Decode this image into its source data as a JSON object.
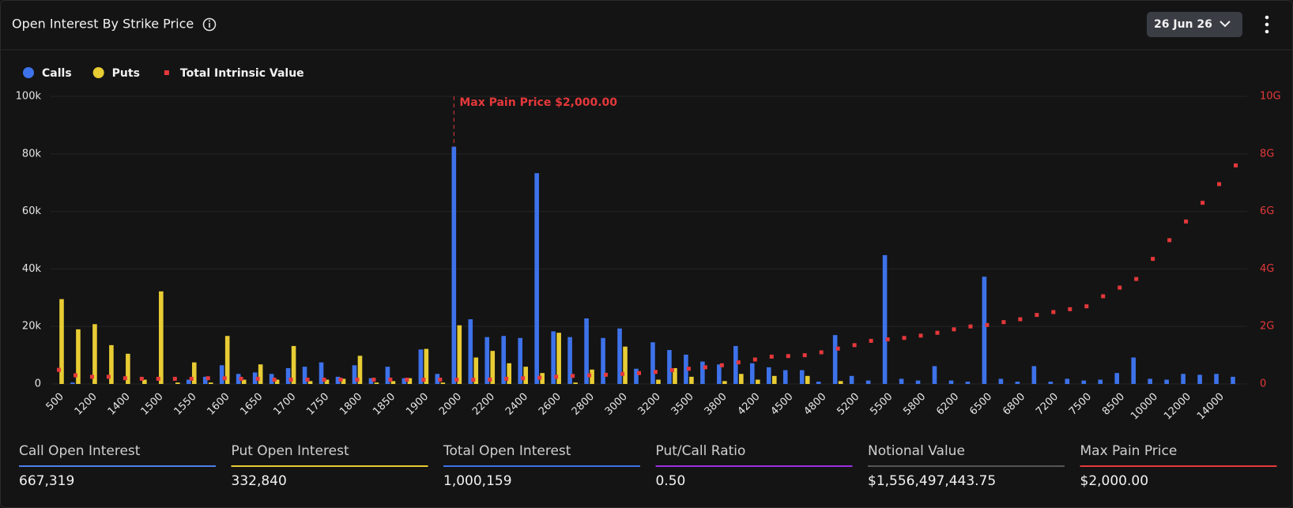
{
  "header": {
    "title": "Open Interest By Strike Price",
    "date_selector": "26 Jun 26"
  },
  "chart_data": {
    "type": "bar",
    "categories": [
      "500",
      null,
      "1200",
      null,
      "1400",
      null,
      "1500",
      null,
      "1550",
      null,
      "1600",
      null,
      "1650",
      null,
      "1700",
      null,
      "1750",
      null,
      "1800",
      null,
      "1850",
      null,
      "1900",
      null,
      "2000",
      null,
      "2200",
      null,
      "2400",
      null,
      "2600",
      null,
      "2800",
      null,
      "3000",
      null,
      "3200",
      null,
      "3500",
      null,
      "3800",
      null,
      "4200",
      null,
      "4500",
      null,
      "4800",
      null,
      "5200",
      null,
      "5500",
      null,
      "5800",
      null,
      "6200",
      null,
      "6500",
      null,
      "6800",
      null,
      "7200",
      null,
      "7500",
      null,
      "8500",
      null,
      "10000",
      null,
      "12000",
      null,
      "14000",
      null
    ],
    "series": [
      {
        "name": "Calls",
        "color": "#3d72ea",
        "values": [
          0,
          0.5,
          0,
          0,
          0,
          0,
          0,
          0,
          1.5,
          2.5,
          6.5,
          3.5,
          4,
          3.5,
          5.5,
          6,
          7.5,
          2.5,
          6.5,
          2,
          6,
          2,
          12,
          3.5,
          82.5,
          22.5,
          16.3,
          16.7,
          16,
          73.3,
          18.3,
          16.3,
          22.8,
          16,
          19.3,
          5.3,
          14.5,
          11.8,
          10.2,
          7.8,
          6.8,
          13.2,
          7.2,
          5.8,
          4.8,
          4.8,
          0.8,
          17,
          2.8,
          1.2,
          44.8,
          1.8,
          1.2,
          6.2,
          1.2,
          0.8,
          37.3,
          1.8,
          0.8,
          6.2,
          0.8,
          1.8,
          1.2,
          1.5,
          3.8,
          9.2,
          1.8,
          1.5,
          3.5,
          3.2,
          3.5,
          2.5
        ]
      },
      {
        "name": "Puts",
        "color": "#e8cc34",
        "values": [
          29.5,
          19,
          20.8,
          13.5,
          10.5,
          1.5,
          32.2,
          0.5,
          7.5,
          0.5,
          16.7,
          1.5,
          6.8,
          1.5,
          13.2,
          1,
          1.5,
          1.8,
          9.8,
          0.5,
          1,
          2,
          12.2,
          0.5,
          20.4,
          9.2,
          11.5,
          7.2,
          6,
          3.8,
          17.8,
          0.5,
          5,
          0,
          13,
          0,
          1.5,
          5.5,
          2.5,
          0,
          1,
          3.5,
          1.5,
          2.8,
          0,
          2.8,
          0,
          1,
          0,
          0,
          0,
          0,
          0,
          0,
          0,
          0,
          0,
          0,
          0,
          0,
          0,
          0,
          0,
          0,
          0,
          0,
          0,
          0,
          0,
          0,
          0,
          0
        ]
      },
      {
        "name": "Total Intrinsic Value",
        "type": "scatter",
        "axis": "y2",
        "color": "#e5383b",
        "values": [
          0.49,
          0.3,
          0.25,
          0.25,
          0.2,
          0.18,
          0.18,
          0.18,
          0.18,
          0.2,
          0.2,
          0.18,
          0.18,
          0.15,
          0.15,
          0.15,
          0.15,
          0.15,
          0.15,
          0.15,
          0.15,
          0.15,
          0.15,
          0.15,
          0.15,
          0.15,
          0.15,
          0.18,
          0.2,
          0.22,
          0.25,
          0.28,
          0.3,
          0.32,
          0.35,
          0.38,
          0.42,
          0.48,
          0.53,
          0.58,
          0.65,
          0.75,
          0.85,
          0.95,
          0.97,
          1.0,
          1.1,
          1.23,
          1.35,
          1.5,
          1.55,
          1.6,
          1.68,
          1.78,
          1.9,
          2.0,
          2.05,
          2.15,
          2.25,
          2.4,
          2.5,
          2.6,
          2.7,
          3.05,
          3.35,
          3.65,
          4.35,
          5.0,
          5.65,
          6.3,
          6.95,
          7.6
        ]
      }
    ],
    "ylim": [
      0,
      100
    ],
    "yticks": [
      0,
      {
        "value": 20,
        "label": "20k"
      },
      {
        "value": 40,
        "label": "40k"
      },
      {
        "value": 60,
        "label": "60k"
      },
      {
        "value": 80,
        "label": "80k"
      },
      {
        "value": 100,
        "label": "100k"
      }
    ],
    "y2lim": [
      0,
      10
    ],
    "y2ticks": [
      0,
      {
        "value": 2,
        "label": "2G"
      },
      {
        "value": 4,
        "label": "4G"
      },
      {
        "value": 6,
        "label": "6G"
      },
      {
        "value": 8,
        "label": "8G"
      },
      {
        "value": 10,
        "label": "10G"
      }
    ],
    "grid": true,
    "legend": "top-left",
    "annotation": {
      "text": "Max Pain Price $2,000.00",
      "category": "2000",
      "color": "#e5383b"
    }
  },
  "stats": [
    {
      "label": "Call Open Interest",
      "value": "667,319",
      "color": "#4f7fe8"
    },
    {
      "label": "Put Open Interest",
      "value": "332,840",
      "color": "#e8cc34"
    },
    {
      "label": "Total Open Interest",
      "value": "1,000,159",
      "color": "#3d72ea"
    },
    {
      "label": "Put/Call Ratio",
      "value": "0.50",
      "color": "#9a2fe0"
    },
    {
      "label": "Notional Value",
      "value": "$1,556,497,443.75",
      "color": "#555555"
    },
    {
      "label": "Max Pain Price",
      "value": "$2,000.00",
      "color": "#e5383b"
    }
  ]
}
